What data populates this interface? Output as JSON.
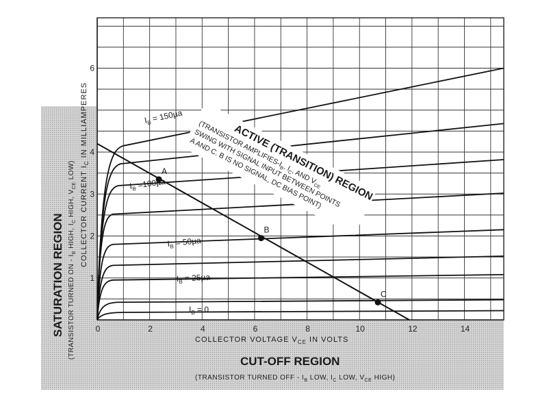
{
  "chart_data": {
    "type": "line",
    "xlabel": "COLLECTOR VOLTAGE  V",
    "xlabel_sub": "CE",
    "xlabel_tail": "  IN  VOLTS",
    "ylabel": "COLLECTOR CURRENT  I",
    "ylabel_sub": "C",
    "ylabel_tail": "  IN  MILLIAMPERES",
    "xlim": [
      0,
      15.5
    ],
    "ylim": [
      0,
      7.2
    ],
    "x_ticks": [
      "0",
      "2",
      "4",
      "6",
      "8",
      "10",
      "12",
      "14"
    ],
    "y_ticks": [
      "1",
      "2",
      "3",
      "4",
      "6"
    ],
    "grid": true,
    "series": [
      {
        "name": "I_B = 0",
        "knee": [
          1.0,
          0.18
        ],
        "end": [
          15.5,
          0.22
        ]
      },
      {
        "name": "",
        "knee": [
          0.8,
          0.42
        ],
        "end": [
          15.5,
          0.48
        ]
      },
      {
        "name": "I_B = 25 µa",
        "knee": [
          0.6,
          0.95
        ],
        "end": [
          15.5,
          1.08
        ]
      },
      {
        "name": "",
        "knee": [
          0.6,
          1.3
        ],
        "end": [
          15.5,
          1.52
        ]
      },
      {
        "name": "I_B = 50 µa",
        "knee": [
          0.6,
          1.8
        ],
        "end": [
          15.5,
          2.15
        ]
      },
      {
        "name": "",
        "knee": [
          0.6,
          2.52
        ],
        "end": [
          15.5,
          3.02
        ]
      },
      {
        "name": "I_B = 100 µa",
        "knee": [
          0.8,
          3.2
        ],
        "end": [
          15.5,
          3.82
        ]
      },
      {
        "name": "",
        "knee": [
          0.9,
          3.72
        ],
        "end": [
          15.5,
          4.68
        ]
      },
      {
        "name": "I_B = 150 µa",
        "knee": [
          1.0,
          4.15
        ],
        "end": [
          15.5,
          6.0
        ]
      }
    ],
    "load_line": {
      "x": [
        0,
        11.9
      ],
      "y": [
        4.2,
        0
      ]
    },
    "points": [
      {
        "label": "A",
        "x": 2.35,
        "y": 3.35
      },
      {
        "label": "B",
        "x": 6.25,
        "y": 1.95
      },
      {
        "label": "C",
        "x": 10.7,
        "y": 0.42
      }
    ],
    "annotations": {
      "ib150": "I",
      "ib150_sub": "B",
      "ib150_val": " = 150µa",
      "ib100": "I",
      "ib100_sub": "B",
      "ib100_val": " =100µa",
      "ib50": "I",
      "ib50_sub": "B",
      "ib50_val": " = 50µa",
      "ib25": "I",
      "ib25_sub": "B",
      "ib25_val": " = 25µa",
      "ib0": "I",
      "ib0_sub": "B",
      "ib0_val": " = 0",
      "active_title": "ACTIVE (TRANSITION) REGION",
      "active_line1": "(TRANSISTOR AMPLIFIES-I",
      "active_line1b": "B",
      "active_line1c": ", I",
      "active_line1d": "C",
      "active_line1e": ", AND V",
      "active_line1f": "CE",
      "active_line2": "SWING WITH SIGNAL INPUT BETWEEN POINTS",
      "active_line3": "A AND C. B IS NO SIGNAL, DC BIAS POINT)",
      "saturation_title": "SATURATION  REGION",
      "saturation_sub": "(TRANSISTOR TURNED ON - I",
      "saturation_sub_b": "B",
      "saturation_sub_c": " HIGH, I",
      "saturation_sub_d": "C",
      "saturation_sub_e": " HIGH, V",
      "saturation_sub_f": "CE",
      "saturation_sub_g": " LOW)",
      "cutoff_title": "CUT-OFF REGION",
      "cutoff_sub": "(TRANSISTOR TURNED OFF - I",
      "cutoff_sub_b": "B",
      "cutoff_sub_c": " LOW, I",
      "cutoff_sub_d": "C",
      "cutoff_sub_e": " LOW, V",
      "cutoff_sub_f": "CE",
      "cutoff_sub_g": " HIGH)"
    }
  }
}
